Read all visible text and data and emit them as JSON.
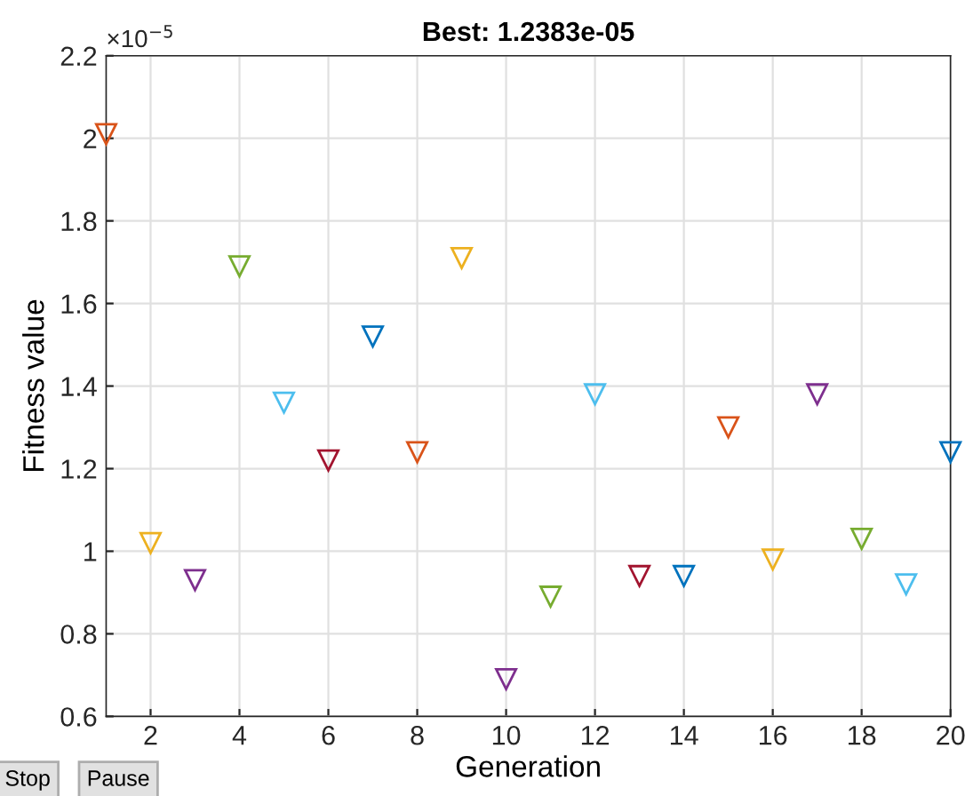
{
  "chart_data": {
    "type": "scatter",
    "title": "Best: 1.2383e-05",
    "xlabel": "Generation",
    "ylabel": "Fitness value",
    "x": [
      1,
      2,
      3,
      4,
      5,
      6,
      7,
      8,
      9,
      10,
      11,
      12,
      13,
      14,
      15,
      16,
      17,
      18,
      19,
      20
    ],
    "values": [
      2.01,
      1.02,
      0.93,
      1.69,
      1.36,
      1.22,
      1.52,
      1.24,
      1.71,
      0.69,
      0.89,
      1.38,
      0.94,
      0.94,
      1.3,
      0.98,
      1.38,
      1.03,
      0.92,
      1.24
    ],
    "colors": [
      "#d95319",
      "#edb120",
      "#7e2f8e",
      "#77ac30",
      "#4dbeee",
      "#a2142f",
      "#0072bd",
      "#d95319",
      "#edb120",
      "#7e2f8e",
      "#77ac30",
      "#4dbeee",
      "#a2142f",
      "#0072bd",
      "#d95319",
      "#edb120",
      "#7e2f8e",
      "#77ac30",
      "#4dbeee",
      "#0072bd"
    ],
    "marker": "triangle",
    "grid": true,
    "xlim": [
      1,
      20
    ],
    "xticks": [
      2,
      4,
      6,
      8,
      10,
      12,
      14,
      16,
      18,
      20
    ],
    "ylim": [
      0.6,
      2.2
    ],
    "yticks": [
      0.6,
      0.8,
      {
        "value": 1,
        "label": "1"
      },
      1.2,
      1.4,
      1.6,
      1.8,
      {
        "value": 2,
        "label": "2"
      },
      2.2
    ],
    "annotations": [
      "×10$^{−5}$",
      "Stop",
      "Pause"
    ]
  }
}
